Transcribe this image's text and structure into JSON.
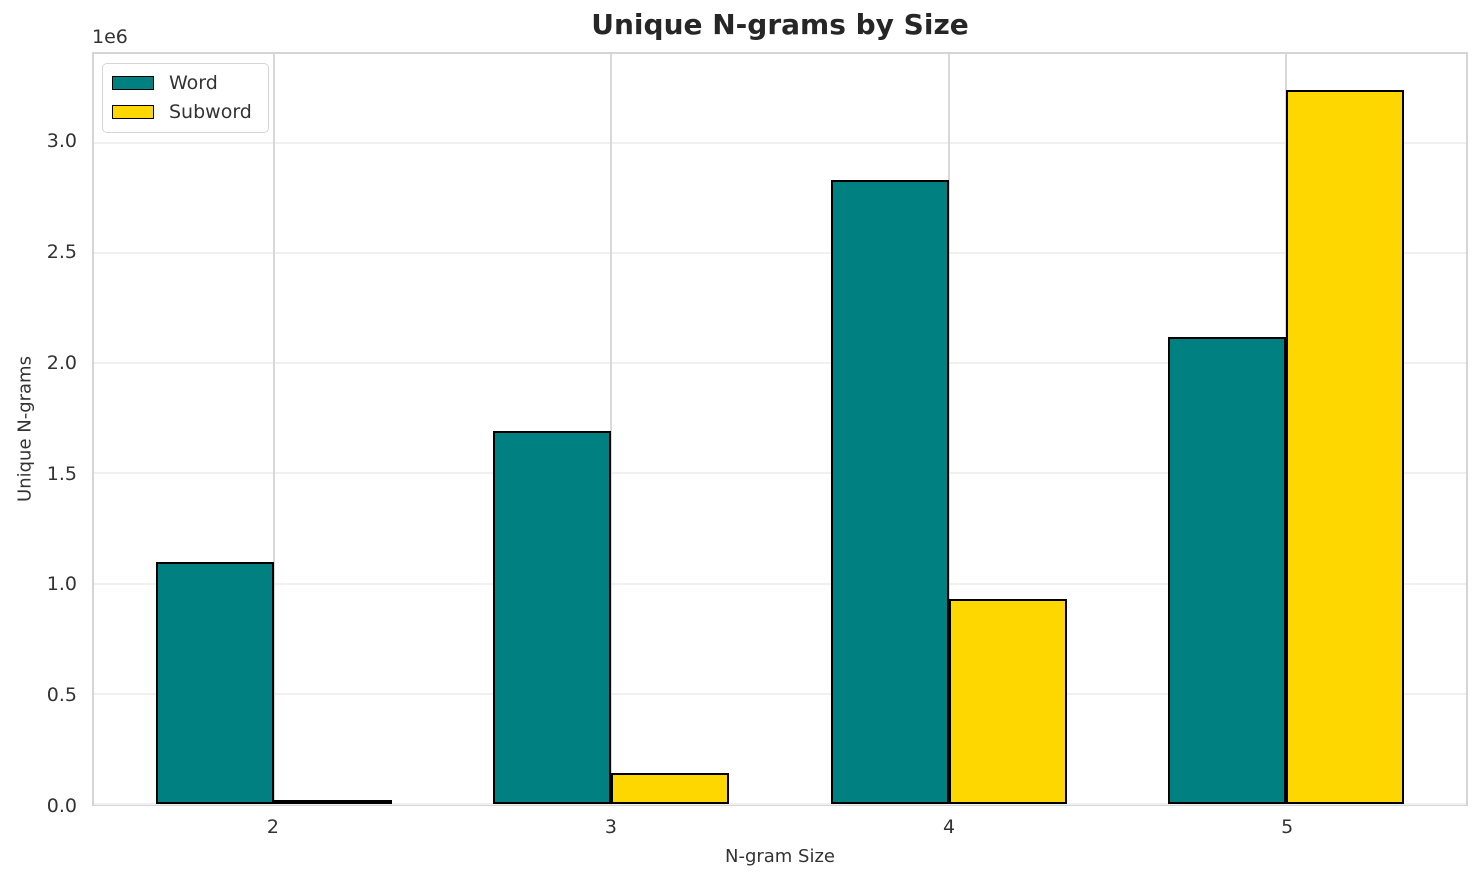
{
  "chart_data": {
    "type": "bar",
    "title": "Unique N-grams by Size",
    "xlabel": "N-gram Size",
    "ylabel": "Unique N-grams",
    "y_offset_label": "1e6",
    "categories": [
      "2",
      "3",
      "4",
      "5"
    ],
    "x_positions": [
      2,
      3,
      4,
      5
    ],
    "series": [
      {
        "name": "Word",
        "color": "#008080",
        "values": [
          1100000,
          1690000,
          2830000,
          2120000
        ]
      },
      {
        "name": "Subword",
        "color": "#FFD700",
        "values": [
          15000,
          140000,
          930000,
          3240000
        ]
      }
    ],
    "series_offsets": [
      -0.35,
      0
    ],
    "bar_width": 0.35,
    "bar_edge_color": "#000000",
    "xlim": [
      1.465,
      5.535
    ],
    "ylim": [
      0,
      3402000
    ],
    "yticks": [
      0,
      500000,
      1000000,
      1500000,
      2000000,
      2500000,
      3000000
    ],
    "ytick_labels": [
      "0.0",
      "0.5",
      "1.0",
      "1.5",
      "2.0",
      "2.5",
      "3.0"
    ],
    "grid": true,
    "legend_position": "upper-left",
    "background_color": "#ffffff"
  }
}
